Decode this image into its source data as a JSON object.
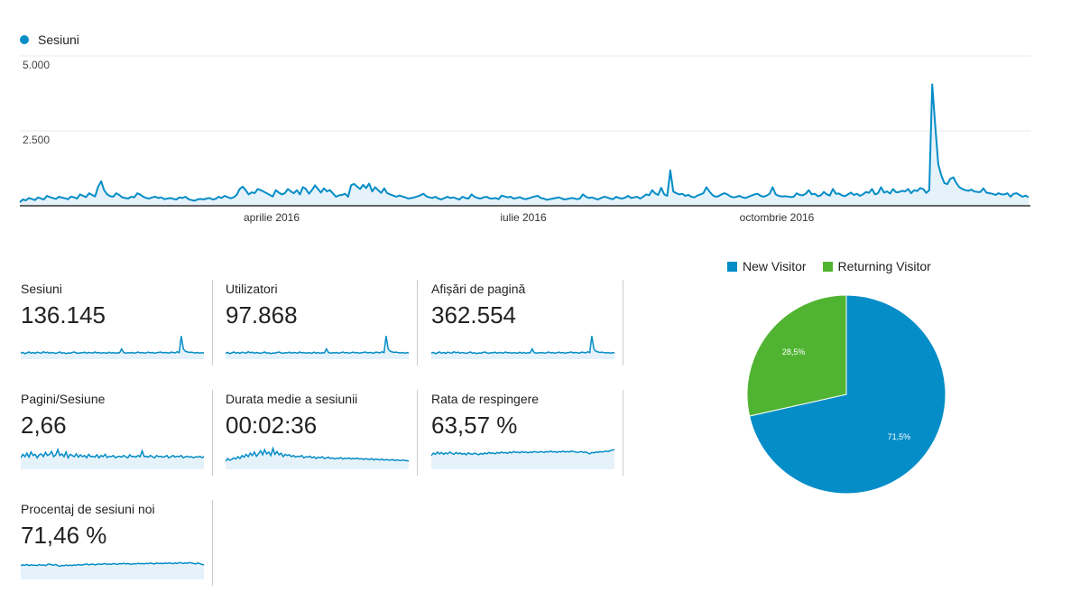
{
  "chart_data": [
    {
      "type": "area",
      "series": [
        {
          "name": "Sesiuni",
          "values": [
            120,
            210,
            180,
            260,
            230,
            190,
            280,
            240,
            210,
            330,
            290,
            260,
            230,
            300,
            270,
            250,
            220,
            310,
            280,
            240,
            380,
            330,
            290,
            420,
            360,
            310,
            640,
            820,
            520,
            380,
            320,
            300,
            420,
            360,
            280,
            260,
            240,
            300,
            280,
            420,
            370,
            300,
            260,
            240,
            280,
            300,
            260,
            280,
            220,
            240,
            260,
            230,
            210,
            280,
            260,
            300,
            220,
            190,
            170,
            210,
            230,
            210,
            240,
            260,
            210,
            230,
            300,
            260,
            330,
            290,
            250,
            280,
            360,
            560,
            640,
            520,
            380,
            450,
            420,
            560,
            520,
            470,
            420,
            360,
            310,
            520,
            440,
            380,
            420,
            560,
            480,
            420,
            520,
            380,
            620,
            560,
            400,
            520,
            680,
            560,
            440,
            580,
            480,
            520,
            410,
            300,
            350,
            360,
            400,
            300,
            680,
            730,
            640,
            560,
            700,
            590,
            740,
            480,
            620,
            520,
            430,
            580,
            420,
            380,
            340,
            300,
            340,
            310,
            280,
            240,
            260,
            280,
            310,
            350,
            400,
            320,
            280,
            260,
            300,
            240,
            210,
            260,
            300,
            260,
            280,
            240,
            210,
            300,
            260,
            240,
            380,
            300,
            260,
            240,
            280,
            300,
            250,
            240,
            260,
            220,
            340,
            310,
            280,
            300,
            240,
            260,
            290,
            240,
            220,
            250,
            280,
            310,
            330,
            260,
            240,
            200,
            220,
            240,
            260,
            280,
            240,
            210,
            230,
            260,
            250,
            220,
            240,
            380,
            300,
            260,
            280,
            240,
            210,
            260,
            300,
            280,
            240,
            220,
            300,
            260,
            240,
            270,
            330,
            260,
            280,
            300,
            240,
            300,
            380,
            350,
            520,
            410,
            360,
            600,
            380,
            330,
            1180,
            480,
            420,
            380,
            400,
            330,
            360,
            300,
            280,
            340,
            380,
            420,
            620,
            480,
            360,
            300,
            320,
            380,
            420,
            380,
            310,
            280,
            300,
            330,
            280,
            260,
            300,
            340,
            380,
            400,
            330,
            300,
            340,
            400,
            620,
            380,
            330,
            310,
            320,
            310,
            290,
            300,
            420,
            360,
            350,
            400,
            520,
            380,
            400,
            320,
            350,
            460,
            380,
            340,
            560,
            400,
            410,
            350,
            320,
            380,
            440,
            360,
            400,
            330,
            380,
            460,
            430,
            560,
            380,
            420,
            620,
            440,
            480,
            410,
            560,
            450,
            460,
            500,
            480,
            560,
            420,
            520,
            490,
            590,
            560,
            430,
            520,
            4050,
            2680,
            1380,
            1020,
            760,
            720,
            900,
            950,
            760,
            620,
            560,
            520,
            500,
            540,
            480,
            460,
            460,
            580,
            440,
            420,
            400,
            360,
            420,
            380,
            380,
            420,
            300,
            400,
            420,
            360,
            300,
            340,
            280
          ],
          "fill": true
        }
      ],
      "ylim": [
        0,
        5000
      ],
      "yticks": [
        "2.500",
        "5.000"
      ],
      "xtick_labels": [
        "aprilie 2016",
        "iulie 2016",
        "octombrie 2016"
      ],
      "legend": [
        "Sesiuni"
      ],
      "color": "#058dc7"
    },
    {
      "type": "pie",
      "slices": [
        {
          "label": "New Visitor",
          "value": 71.5,
          "text": "71,5%",
          "color": "#058dc7"
        },
        {
          "label": "Returning Visitor",
          "value": 28.5,
          "text": "28,5%",
          "color": "#50b432"
        }
      ],
      "legend_position": "top"
    }
  ],
  "main_chart": {
    "legend_label": "Sesiuni",
    "y_labels": [
      "5.000",
      "2.500"
    ],
    "x_labels": [
      "aprilie 2016",
      "iulie 2016",
      "octombrie 2016"
    ]
  },
  "metrics": [
    {
      "label": "Sesiuni",
      "value": "136.145",
      "spark": [
        0.22,
        0.25,
        0.2,
        0.23,
        0.27,
        0.22,
        0.25,
        0.21,
        0.26,
        0.24,
        0.22,
        0.28,
        0.24,
        0.26,
        0.22,
        0.25,
        0.23,
        0.21,
        0.24,
        0.27,
        0.22,
        0.24,
        0.2,
        0.23,
        0.22,
        0.25,
        0.27,
        0.23,
        0.21,
        0.24,
        0.23,
        0.26,
        0.22,
        0.25,
        0.24,
        0.22,
        0.27,
        0.23,
        0.25,
        0.22,
        0.24,
        0.23,
        0.22,
        0.26,
        0.22,
        0.25,
        0.21,
        0.24,
        0.23,
        0.4,
        0.25,
        0.22,
        0.24,
        0.23,
        0.25,
        0.22,
        0.24,
        0.27,
        0.23,
        0.25,
        0.22,
        0.24,
        0.26,
        0.23,
        0.25,
        0.22,
        0.24,
        0.25,
        0.27,
        0.23,
        0.25,
        0.24,
        0.22,
        0.26,
        0.25,
        0.23,
        0.28,
        0.24,
        0.95,
        0.4,
        0.3,
        0.27,
        0.25,
        0.26,
        0.24,
        0.23,
        0.25,
        0.22,
        0.24,
        0.23
      ]
    },
    {
      "label": "Utilizatori",
      "value": "97.868",
      "spark": [
        0.22,
        0.25,
        0.2,
        0.23,
        0.27,
        0.22,
        0.25,
        0.21,
        0.26,
        0.24,
        0.22,
        0.28,
        0.24,
        0.26,
        0.22,
        0.25,
        0.23,
        0.21,
        0.24,
        0.27,
        0.22,
        0.24,
        0.2,
        0.23,
        0.22,
        0.25,
        0.27,
        0.23,
        0.21,
        0.24,
        0.23,
        0.26,
        0.22,
        0.25,
        0.24,
        0.22,
        0.27,
        0.23,
        0.25,
        0.22,
        0.24,
        0.23,
        0.22,
        0.26,
        0.22,
        0.25,
        0.21,
        0.24,
        0.23,
        0.4,
        0.25,
        0.22,
        0.24,
        0.23,
        0.25,
        0.22,
        0.24,
        0.27,
        0.23,
        0.25,
        0.22,
        0.24,
        0.26,
        0.23,
        0.25,
        0.22,
        0.24,
        0.25,
        0.27,
        0.23,
        0.25,
        0.24,
        0.22,
        0.26,
        0.25,
        0.23,
        0.28,
        0.24,
        0.95,
        0.4,
        0.3,
        0.27,
        0.25,
        0.26,
        0.24,
        0.23,
        0.25,
        0.22,
        0.24,
        0.23
      ]
    },
    {
      "label": "Afișări de pagină",
      "value": "362.554",
      "spark": [
        0.22,
        0.25,
        0.2,
        0.23,
        0.27,
        0.22,
        0.25,
        0.21,
        0.26,
        0.24,
        0.22,
        0.28,
        0.24,
        0.26,
        0.22,
        0.25,
        0.23,
        0.21,
        0.24,
        0.27,
        0.22,
        0.24,
        0.2,
        0.23,
        0.22,
        0.25,
        0.27,
        0.23,
        0.21,
        0.24,
        0.23,
        0.26,
        0.22,
        0.25,
        0.24,
        0.22,
        0.27,
        0.23,
        0.25,
        0.22,
        0.24,
        0.23,
        0.22,
        0.26,
        0.22,
        0.25,
        0.21,
        0.24,
        0.23,
        0.4,
        0.25,
        0.22,
        0.24,
        0.23,
        0.25,
        0.22,
        0.24,
        0.27,
        0.23,
        0.25,
        0.22,
        0.24,
        0.26,
        0.23,
        0.25,
        0.22,
        0.24,
        0.25,
        0.27,
        0.23,
        0.25,
        0.24,
        0.22,
        0.26,
        0.25,
        0.23,
        0.28,
        0.24,
        0.95,
        0.4,
        0.3,
        0.27,
        0.25,
        0.26,
        0.24,
        0.23,
        0.25,
        0.22,
        0.24,
        0.23
      ]
    },
    {
      "label": "Pagini/Sesiune",
      "value": "2,66",
      "spark": [
        0.45,
        0.6,
        0.5,
        0.65,
        0.48,
        0.7,
        0.55,
        0.6,
        0.45,
        0.58,
        0.62,
        0.5,
        0.68,
        0.55,
        0.6,
        0.72,
        0.5,
        0.58,
        0.8,
        0.55,
        0.62,
        0.5,
        0.7,
        0.45,
        0.6,
        0.55,
        0.5,
        0.62,
        0.48,
        0.58,
        0.5,
        0.55,
        0.45,
        0.6,
        0.5,
        0.52,
        0.48,
        0.58,
        0.45,
        0.55,
        0.5,
        0.6,
        0.46,
        0.52,
        0.5,
        0.55,
        0.45,
        0.5,
        0.52,
        0.48,
        0.55,
        0.5,
        0.45,
        0.58,
        0.5,
        0.52,
        0.48,
        0.55,
        0.5,
        0.75,
        0.5,
        0.52,
        0.48,
        0.55,
        0.5,
        0.45,
        0.55,
        0.5,
        0.52,
        0.48,
        0.5,
        0.55,
        0.45,
        0.5,
        0.55,
        0.48,
        0.52,
        0.5,
        0.55,
        0.45,
        0.5,
        0.52,
        0.48,
        0.5,
        0.45,
        0.5,
        0.48,
        0.52,
        0.46,
        0.5
      ]
    },
    {
      "label": "Durata medie a sesiunii",
      "value": "00:02:36",
      "spark": [
        0.3,
        0.42,
        0.35,
        0.38,
        0.45,
        0.4,
        0.5,
        0.42,
        0.55,
        0.48,
        0.6,
        0.5,
        0.65,
        0.55,
        0.7,
        0.52,
        0.62,
        0.75,
        0.58,
        0.8,
        0.62,
        0.7,
        0.55,
        0.85,
        0.6,
        0.72,
        0.58,
        0.65,
        0.5,
        0.6,
        0.55,
        0.58,
        0.5,
        0.55,
        0.48,
        0.52,
        0.5,
        0.55,
        0.45,
        0.5,
        0.48,
        0.52,
        0.45,
        0.5,
        0.42,
        0.48,
        0.45,
        0.5,
        0.42,
        0.45,
        0.48,
        0.42,
        0.45,
        0.4,
        0.44,
        0.42,
        0.46,
        0.4,
        0.44,
        0.42,
        0.45,
        0.4,
        0.43,
        0.41,
        0.44,
        0.4,
        0.42,
        0.38,
        0.41,
        0.4,
        0.38,
        0.42,
        0.36,
        0.4,
        0.38,
        0.36,
        0.4,
        0.35,
        0.38,
        0.36,
        0.35,
        0.38,
        0.34,
        0.36,
        0.35,
        0.33,
        0.36,
        0.34,
        0.33,
        0.32
      ]
    },
    {
      "label": "Rata de respingere",
      "value": "63,57 %",
      "spark": [
        0.55,
        0.65,
        0.6,
        0.7,
        0.62,
        0.68,
        0.6,
        0.66,
        0.62,
        0.7,
        0.64,
        0.6,
        0.68,
        0.62,
        0.66,
        0.6,
        0.64,
        0.58,
        0.66,
        0.62,
        0.6,
        0.65,
        0.62,
        0.58,
        0.64,
        0.6,
        0.66,
        0.62,
        0.68,
        0.64,
        0.66,
        0.62,
        0.68,
        0.64,
        0.7,
        0.66,
        0.68,
        0.64,
        0.7,
        0.66,
        0.72,
        0.68,
        0.7,
        0.66,
        0.72,
        0.68,
        0.7,
        0.66,
        0.7,
        0.68,
        0.72,
        0.7,
        0.68,
        0.72,
        0.7,
        0.68,
        0.72,
        0.7,
        0.74,
        0.7,
        0.72,
        0.68,
        0.72,
        0.7,
        0.74,
        0.7,
        0.72,
        0.7,
        0.74,
        0.72,
        0.7,
        0.68,
        0.7,
        0.72,
        0.68,
        0.7,
        0.66,
        0.62,
        0.68,
        0.66,
        0.7,
        0.68,
        0.72,
        0.7,
        0.72,
        0.74,
        0.72,
        0.76,
        0.78,
        0.8
      ]
    },
    {
      "label": "Procentaj de sesiuni noi",
      "value": "71,46 %",
      "spark": [
        0.55,
        0.58,
        0.56,
        0.6,
        0.55,
        0.58,
        0.56,
        0.57,
        0.55,
        0.6,
        0.56,
        0.58,
        0.55,
        0.6,
        0.62,
        0.58,
        0.56,
        0.6,
        0.55,
        0.52,
        0.56,
        0.54,
        0.58,
        0.55,
        0.57,
        0.55,
        0.58,
        0.56,
        0.6,
        0.57,
        0.58,
        0.6,
        0.62,
        0.58,
        0.6,
        0.62,
        0.58,
        0.6,
        0.62,
        0.6,
        0.62,
        0.64,
        0.6,
        0.62,
        0.6,
        0.64,
        0.62,
        0.6,
        0.64,
        0.62,
        0.65,
        0.62,
        0.64,
        0.62,
        0.6,
        0.64,
        0.62,
        0.65,
        0.63,
        0.64,
        0.62,
        0.65,
        0.63,
        0.66,
        0.64,
        0.62,
        0.66,
        0.64,
        0.65,
        0.63,
        0.66,
        0.64,
        0.66,
        0.65,
        0.63,
        0.66,
        0.64,
        0.68,
        0.66,
        0.64,
        0.66,
        0.65,
        0.68,
        0.66,
        0.64,
        0.62,
        0.66,
        0.64,
        0.6,
        0.58
      ]
    }
  ],
  "colors": {
    "accent": "#058dc7",
    "fill": "#e6f2fa",
    "green": "#50b432",
    "grid": "#e0e0e0",
    "axis": "#333333"
  }
}
